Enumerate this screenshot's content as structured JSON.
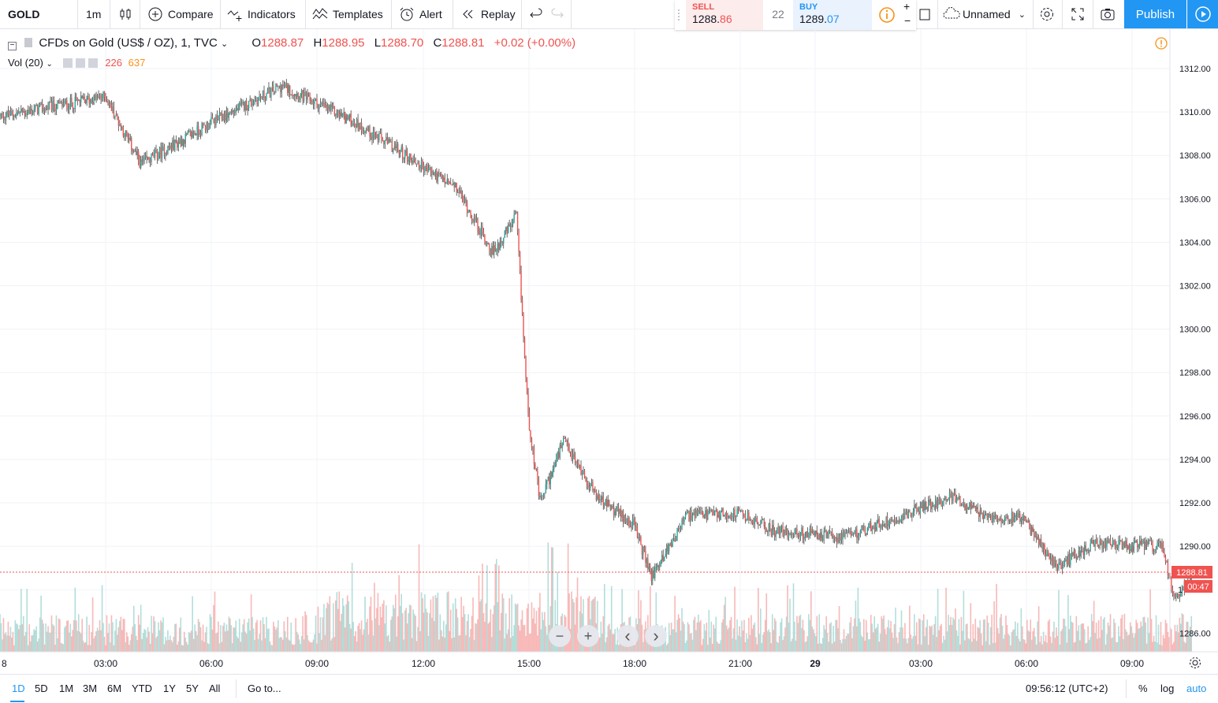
{
  "toolbar": {
    "symbol": "GOLD",
    "interval": "1m",
    "compare": "Compare",
    "indicators": "Indicators",
    "templates": "Templates",
    "alert": "Alert",
    "replay": "Replay",
    "sell_label": "SELL",
    "sell_price_main": "1288.",
    "sell_price_end": "86",
    "spread": "22",
    "buy_label": "BUY",
    "buy_price_main": "1289.",
    "buy_price_end": "07",
    "layout_name": "Unnamed",
    "publish": "Publish",
    "icons": [
      "candles-icon",
      "compare-plus-icon",
      "indicators-icon",
      "templates-icon",
      "alarm-clock-icon",
      "replay-icon",
      "undo-icon",
      "redo-icon",
      "info-icon",
      "plus-icon",
      "minus-icon",
      "rectangle-icon",
      "cloud-icon",
      "chevron-down-icon",
      "gear-icon",
      "fullscreen-icon",
      "camera-icon",
      "play-icon"
    ]
  },
  "legend": {
    "title": "CFDs on Gold (US$ / OZ), 1, TVC",
    "o_label": "O",
    "o_value": "1288.87",
    "h_label": "H",
    "h_value": "1288.95",
    "l_label": "L",
    "l_value": "1288.70",
    "c_label": "C",
    "c_value": "1288.81",
    "change": "+0.02 (+0.00%)",
    "vol_label": "Vol (20)",
    "vol_value": "226",
    "vol_ma_value": "637"
  },
  "price_tag": {
    "price": "1288.81",
    "countdown": "00:47",
    "axis_partial": "1"
  },
  "colors": {
    "up": "#26a69a",
    "down": "#ef5350",
    "accent": "#2196f3",
    "vol_up": "#9fd6d1",
    "vol_down": "#f5a7a6"
  },
  "chart_data": {
    "type": "candlestick",
    "title": "CFDs on Gold (US$ / OZ), 1, TVC",
    "y_axis": {
      "min": 1285,
      "max": 1313,
      "ticks": [
        "1312.00",
        "1310.00",
        "1308.00",
        "1306.00",
        "1304.00",
        "1302.00",
        "1300.00",
        "1298.00",
        "1296.00",
        "1294.00",
        "1292.00",
        "1290.00",
        "1286.00"
      ]
    },
    "x_axis": {
      "ticks": [
        "8",
        "03:00",
        "06:00",
        "09:00",
        "12:00",
        "15:00",
        "18:00",
        "21:00",
        "29",
        "03:00",
        "06:00",
        "09:00"
      ]
    },
    "grid": true,
    "series": [
      {
        "name": "price",
        "x": [
          "00:00",
          "03:00",
          "04:00",
          "06:00",
          "08:00",
          "09:00",
          "10:00",
          "12:00",
          "13:00",
          "14:00",
          "14:40",
          "15:00",
          "15:20",
          "16:00",
          "17:00",
          "18:00",
          "18:30",
          "19:30",
          "21:00",
          "22:00",
          "00:00",
          "03:00",
          "04:00",
          "05:00",
          "06:00",
          "07:00",
          "08:00",
          "09:00",
          "09:20",
          "09:50"
        ],
        "values": [
          1309.8,
          1310.7,
          1307.6,
          1309.5,
          1311.2,
          1310.4,
          1309.6,
          1307.5,
          1306.4,
          1303.5,
          1305.2,
          1296.0,
          1292.0,
          1294.8,
          1292.2,
          1291.0,
          1288.6,
          1291.4,
          1291.5,
          1290.7,
          1290.4,
          1292.3,
          1291.3,
          1291.4,
          1289.0,
          1290.1,
          1290.0,
          1290.0,
          1287.5,
          1288.8
        ]
      }
    ],
    "volume": {
      "name": "Vol (20)",
      "last": 226,
      "ma": 637
    }
  },
  "nav_buttons": {
    "zoom_out": "−",
    "zoom_in": "+",
    "left": "‹",
    "right": "›"
  },
  "bottom": {
    "ranges": [
      "1D",
      "5D",
      "1M",
      "3M",
      "6M",
      "YTD",
      "1Y",
      "5Y",
      "All"
    ],
    "goto": "Go to...",
    "clock": "09:56:12 (UTC+2)",
    "percent": "%",
    "log": "log",
    "auto": "auto"
  }
}
